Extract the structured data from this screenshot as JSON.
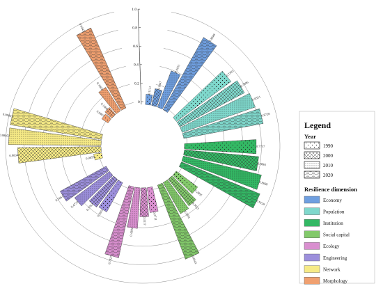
{
  "chart_data": {
    "type": "bar",
    "layout": "circular",
    "legend": {
      "title": "Legend",
      "year_title": "Year",
      "dimension_title": "Resilience dimension",
      "placement": "right"
    },
    "years": [
      {
        "label": "1990",
        "pattern": "dots"
      },
      {
        "label": "2000",
        "pattern": "crosshatch"
      },
      {
        "label": "2010",
        "pattern": "dense-dots"
      },
      {
        "label": "2020",
        "pattern": "contours"
      }
    ],
    "radial_ticks": [
      "0",
      "0.2",
      "0.4",
      "0.6",
      "0.8",
      "1.0"
    ],
    "ylim": [
      0,
      1
    ],
    "groups": [
      {
        "name": "Economy",
        "color": "#6f9fe0",
        "values": [
          0.1111,
          0.1847,
          0.4193,
          0.8949
        ],
        "labels": [
          "0.1111",
          "0.1847",
          "0.4193",
          "0.8949"
        ]
      },
      {
        "name": "Population",
        "color": "#7fd8cc",
        "values": [
          0.7305,
          0.7896,
          0.8351,
          0.8728
        ],
        "labels": [
          "0.7305",
          "0.7896",
          "0.8351",
          "0.8728"
        ]
      },
      {
        "name": "Institution",
        "color": "#33b864",
        "values": [
          0.7757,
          0.8061,
          0.868,
          0.9158
        ],
        "labels": [
          "0.7757",
          "0.8061",
          "0.8680",
          "0.9158"
        ]
      },
      {
        "name": "Social capital",
        "color": "#82c96a",
        "values": [
          0.2885,
          0.3653,
          0.3852,
          0.8541
        ],
        "labels": [
          "0.2885",
          "0.3653",
          "0.3852",
          "0.8541"
        ]
      },
      {
        "name": "Ecology",
        "color": "#d98fcf",
        "values": [
          0.2711,
          0.3117,
          0.4394,
          0.7827
        ],
        "labels": [
          "0.2711",
          "0.3117",
          "0.4394",
          "0.7827"
        ]
      },
      {
        "name": "Engineering",
        "color": "#9c8fdc",
        "values": [
          0.3601,
          0.3762,
          0.4731,
          0.5661
        ],
        "labels": [
          "0.3601",
          "0.3762",
          "0.4731",
          "0.5661"
        ]
      },
      {
        "name": "Network",
        "color": "#f6ea86",
        "values": [
          0.0859,
          0.9004,
          0.99957,
          0.99835
        ],
        "labels": [
          "0.0859",
          "0.9004",
          "0.99957",
          "0.99835"
        ]
      },
      {
        "name": "Morphology",
        "color": "#f0a070",
        "values": [
          0.0807,
          0.1,
          0.3002,
          0.9442
        ],
        "labels": [
          "0.0807",
          "0.1000",
          "0.3002",
          "0.9442"
        ]
      }
    ]
  }
}
